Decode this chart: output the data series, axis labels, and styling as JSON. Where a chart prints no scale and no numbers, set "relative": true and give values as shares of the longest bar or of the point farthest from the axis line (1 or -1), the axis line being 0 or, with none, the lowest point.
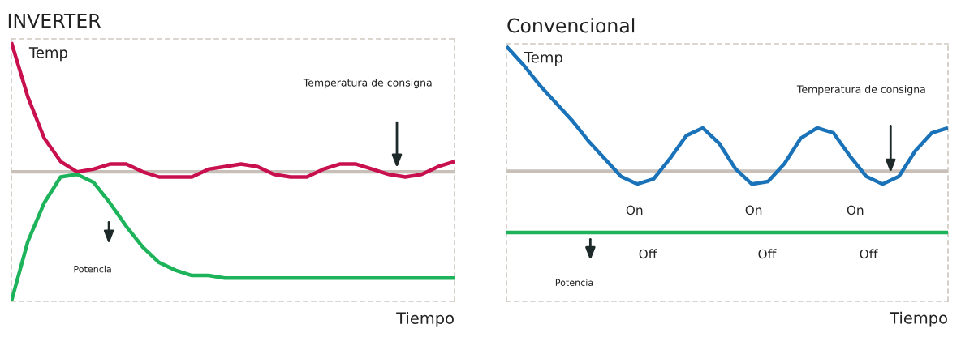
{
  "chart_data": [
    {
      "type": "line",
      "title": "INVERTER",
      "ylabel": "Temp",
      "xlabel": "Tiempo",
      "relative": true,
      "legend": false,
      "line_style": "solid",
      "categories": [
        null,
        null,
        null,
        null,
        null,
        null,
        null,
        null,
        null,
        null,
        null,
        null,
        null,
        null,
        null,
        null,
        null,
        null,
        null,
        null,
        null,
        null,
        null,
        null,
        null,
        null,
        null,
        null
      ],
      "series": [
        {
          "color": "#c8104f",
          "values": [
            1.0,
            0.79,
            0.63,
            0.54,
            0.5,
            0.51,
            0.53,
            0.53,
            0.5,
            0.48,
            0.48,
            0.48,
            0.51,
            0.52,
            0.53,
            0.52,
            0.49,
            0.48,
            0.48,
            0.51,
            0.53,
            0.53,
            0.51,
            0.49,
            0.48,
            0.49,
            0.52,
            0.54
          ]
        },
        {
          "color": "#1db35a",
          "values": [
            0,
            0.23,
            0.38,
            0.48,
            0.49,
            0.46,
            0.38,
            0.29,
            0.21,
            0.15,
            0.12,
            0.1,
            0.1,
            0.09,
            0.09,
            0.09,
            0.09,
            0.09,
            0.09,
            0.09,
            0.09,
            0.09,
            0.09,
            0.09,
            0.09,
            0.09,
            0.09,
            0.09
          ]
        }
      ],
      "ref_lines": [
        {
          "axis": "y",
          "value": 0.5,
          "color": "#c8c0b8"
        }
      ],
      "annotations": [
        "Temperatura de consigna",
        "Potencia"
      ]
    },
    {
      "type": "line",
      "title": "Convencional",
      "ylabel": "Temp",
      "xlabel": "Tiempo",
      "relative": true,
      "legend": false,
      "categories": [
        null,
        null,
        null,
        null,
        null,
        null,
        null,
        null,
        null,
        null,
        null,
        null,
        null,
        null,
        null,
        null,
        null,
        null,
        null,
        null,
        null,
        null,
        null,
        null,
        null,
        null,
        null,
        null
      ],
      "series": [
        {
          "color": "#1a72b8",
          "line_style": "solid",
          "values": [
            1.0,
            0.93,
            0.85,
            0.78,
            0.71,
            0.63,
            0.56,
            0.49,
            0.46,
            0.48,
            0.56,
            0.65,
            0.68,
            0.62,
            0.52,
            0.46,
            0.47,
            0.54,
            0.64,
            0.68,
            0.66,
            0.57,
            0.49,
            0.46,
            0.49,
            0.59,
            0.66,
            0.68
          ]
        },
        {
          "color": "#1db35a",
          "line_style": "solid",
          "values": [
            0.27,
            0.27,
            0.27,
            0.27,
            0.27,
            0.27,
            0.27,
            0.27,
            0.27,
            0.27,
            0.27,
            0.27,
            0.27,
            0.27,
            0.27,
            0.27,
            0.27,
            0.27,
            0.27,
            0.27,
            0.27,
            0.27,
            0.27,
            0.27,
            0.27,
            0.27,
            0.27,
            0.27
          ]
        }
      ],
      "ref_lines": [
        {
          "axis": "y",
          "value": 0.51,
          "color": "#c8c0b8"
        }
      ],
      "annotations": [
        "Temperatura de consigna",
        "Potencia",
        "On",
        "On",
        "On",
        "Off",
        "Off",
        "Off"
      ]
    }
  ]
}
